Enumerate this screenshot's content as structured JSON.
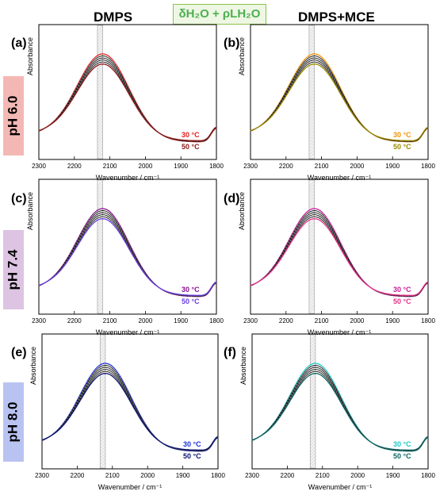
{
  "header": {
    "left_title": "DMPS",
    "right_title": "DMPS+MCE",
    "center_label": "δH₂O + ρLH₂O"
  },
  "rows": [
    {
      "ph_label": "pH 6.0",
      "ph_bg": "#f4b8b4"
    },
    {
      "ph_label": "pH 7.4",
      "ph_bg": "#dcc4e2"
    },
    {
      "ph_label": "pH 8.0",
      "ph_bg": "#b9c3f2"
    }
  ],
  "chart_data": [
    {
      "type": "line",
      "panel": "(a)",
      "title": "",
      "xlabel": "Wavenumber / cm⁻¹",
      "ylabel": "Absorbance",
      "xlim": [
        2300,
        1800
      ],
      "xticks": [
        2300,
        2200,
        2100,
        2000,
        1900,
        1800
      ],
      "x_reversed": true,
      "shaded_band": [
        2135,
        2120
      ],
      "series": [
        {
          "name": "30 °C",
          "color": "#e0211f"
        },
        {
          "name": "50 °C",
          "color": "#8b1a1a"
        }
      ],
      "legend": [
        "30 °C",
        "50 °C"
      ]
    },
    {
      "type": "line",
      "panel": "(b)",
      "title": "",
      "xlabel": "Wavenumber / cm⁻¹",
      "ylabel": "Absorbance",
      "xlim": [
        2300,
        1800
      ],
      "xticks": [
        2300,
        2200,
        2100,
        2000,
        1900,
        1800
      ],
      "x_reversed": true,
      "shaded_band": [
        2135,
        2120
      ],
      "series": [
        {
          "name": "30 °C",
          "color": "#f39200"
        },
        {
          "name": "50 °C",
          "color": "#9a8a00"
        }
      ],
      "legend": [
        "30 °C",
        "50 °C"
      ]
    },
    {
      "type": "line",
      "panel": "(c)",
      "title": "",
      "xlabel": "Wavenumber / cm⁻¹",
      "ylabel": "Absorbance",
      "xlim": [
        2300,
        1800
      ],
      "xticks": [
        2300,
        2200,
        2100,
        2000,
        1900,
        1800
      ],
      "x_reversed": true,
      "shaded_band": [
        2135,
        2120
      ],
      "series": [
        {
          "name": "30 °C",
          "color": "#8a0f8f"
        },
        {
          "name": "50 °C",
          "color": "#6b3fe0"
        }
      ],
      "legend": [
        "30 °C",
        "50 °C"
      ]
    },
    {
      "type": "line",
      "panel": "(d)",
      "title": "",
      "xlabel": "Wavenumber / cm⁻¹",
      "ylabel": "Absorbance",
      "xlim": [
        2300,
        1800
      ],
      "xticks": [
        2300,
        2200,
        2100,
        2000,
        1900,
        1800
      ],
      "x_reversed": true,
      "shaded_band": [
        2135,
        2120
      ],
      "series": [
        {
          "name": "30 °C",
          "color": "#c81a9a"
        },
        {
          "name": "50 °C",
          "color": "#e8318a"
        }
      ],
      "legend": [
        "30 °C",
        "50 °C"
      ]
    },
    {
      "type": "line",
      "panel": "(e)",
      "title": "",
      "xlabel": "Wavenumber / cm⁻¹",
      "ylabel": "Absorbance",
      "xlim": [
        2300,
        1800
      ],
      "xticks": [
        2300,
        2200,
        2100,
        2000,
        1900,
        1800
      ],
      "x_reversed": true,
      "shaded_band": [
        2135,
        2120
      ],
      "series": [
        {
          "name": "30 °C",
          "color": "#1e2fd8"
        },
        {
          "name": "50 °C",
          "color": "#0b1570"
        }
      ],
      "legend": [
        "30 °C",
        "50 °C"
      ]
    },
    {
      "type": "line",
      "panel": "(f)",
      "title": "",
      "xlabel": "Wavenumber / cm⁻¹",
      "ylabel": "Absorbance",
      "xlim": [
        2300,
        1800
      ],
      "xticks": [
        2300,
        2200,
        2100,
        2000,
        1900,
        1800
      ],
      "x_reversed": true,
      "shaded_band": [
        2135,
        2120
      ],
      "series": [
        {
          "name": "30 °C",
          "color": "#1ec8c8"
        },
        {
          "name": "50 °C",
          "color": "#0f6666"
        }
      ],
      "legend": [
        "30 °C",
        "50 °C"
      ]
    }
  ]
}
